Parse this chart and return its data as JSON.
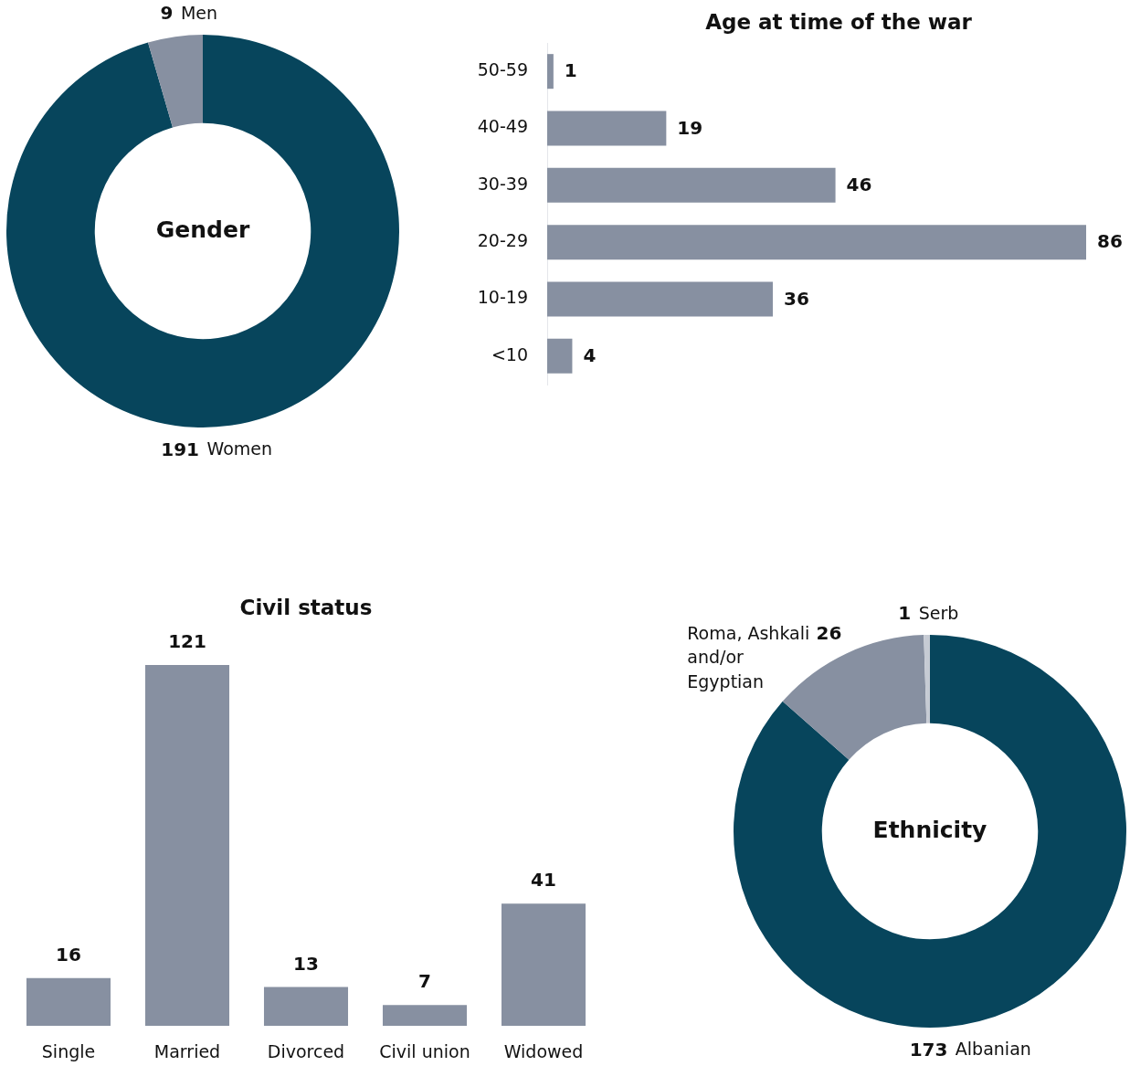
{
  "chart_data": [
    {
      "type": "donut",
      "title": "Gender",
      "categories": [
        "Women",
        "Men"
      ],
      "values": [
        191,
        9
      ],
      "colors": [
        "#07455c",
        "#8790a1"
      ],
      "data_labels": true
    },
    {
      "type": "bar",
      "title": "Age at time of the war",
      "orientation": "horizontal",
      "categories": [
        "50-59",
        "40-49",
        "30-39",
        "20-29",
        "10-19",
        "<10"
      ],
      "values": [
        1,
        19,
        46,
        86,
        36,
        4
      ],
      "color": "#8790a1",
      "data_labels": true,
      "tick_labels": "y"
    },
    {
      "type": "bar",
      "title": "Civil status",
      "categories": [
        "Single",
        "Married",
        "Divorced",
        "Civil union",
        "Widowed"
      ],
      "values": [
        16,
        121,
        13,
        7,
        41
      ],
      "color": "#8790a1",
      "data_labels": true,
      "tick_labels": "x"
    },
    {
      "type": "donut",
      "title": "Ethnicity",
      "categories": [
        "Albanian",
        "Roma, Ashkali and/or Egyptian",
        "Serb"
      ],
      "values": [
        173,
        26,
        1
      ],
      "colors": [
        "#07455c",
        "#8790a1",
        "#c6cbd4"
      ],
      "data_labels": true
    }
  ]
}
